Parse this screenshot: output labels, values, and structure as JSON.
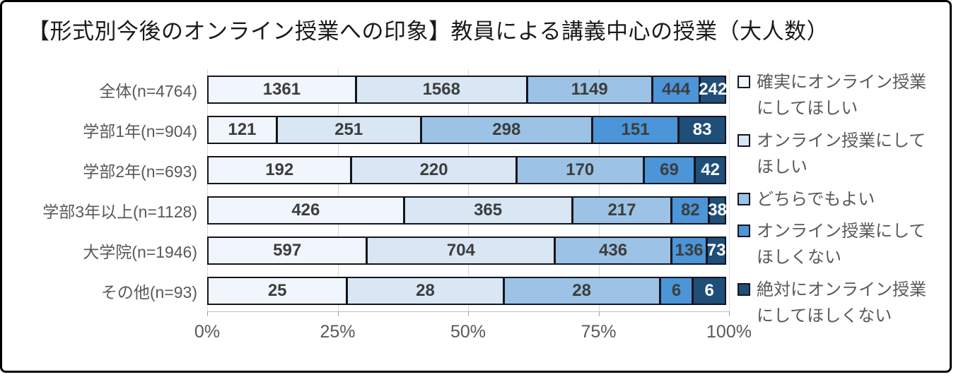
{
  "title": "【形式別今後のオンライン授業への印象】教員による講義中心の授業（大人数）",
  "chart_data": {
    "type": "bar",
    "stacked": true,
    "orientation": "horizontal",
    "normalized": "each row scaled to 100% of its total",
    "categories": [
      "全体(n=4764)",
      "学部1年(n=904)",
      "学部2年(n=693)",
      "学部3年以上(n=1128)",
      "大学院(n=1946)",
      "その他(n=93)"
    ],
    "series": [
      {
        "name": "確実にオンライン授業にしてほしい",
        "color": "#f0f6fb",
        "values": [
          1361,
          121,
          192,
          426,
          597,
          25
        ]
      },
      {
        "name": "オンライン授業にしてほしい",
        "color": "#d9e6f4",
        "values": [
          1568,
          251,
          220,
          365,
          704,
          28
        ]
      },
      {
        "name": "どちらでもよい",
        "color": "#9cc3e5",
        "values": [
          1149,
          298,
          170,
          217,
          436,
          28
        ]
      },
      {
        "name": "オンライン授業にしてほしくない",
        "color": "#4b95d8",
        "values": [
          444,
          151,
          69,
          82,
          136,
          6
        ]
      },
      {
        "name": "絶対にオンライン授業にしてほしくない",
        "color": "#1f4e79",
        "values": [
          242,
          83,
          42,
          38,
          73,
          6
        ]
      }
    ],
    "x_axis": {
      "tick_labels": [
        "0%",
        "25%",
        "50%",
        "75%",
        "100%"
      ],
      "range_percent": [
        0,
        100
      ],
      "grid": true
    },
    "legend_position": "right",
    "value_label_color": "#3d3d3d",
    "value_label_color_on_dark": "#ffffff",
    "dark_series_index": 4
  }
}
